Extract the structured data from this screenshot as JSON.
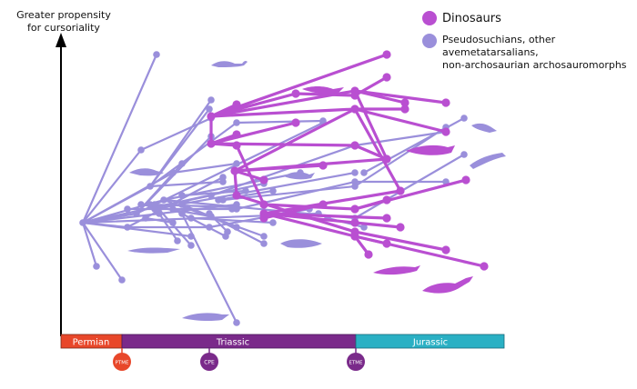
{
  "y_axis_label": [
    "Greater propensity",
    "for cursoriality"
  ],
  "legend": [
    {
      "label": "Dinosaurs",
      "color": "#b94fd1"
    },
    {
      "label": "Pseudosuchians, other avemetatarsalians,",
      "label2": "non-archosaurian archosauromorphs",
      "color": "#9a8fdb"
    }
  ],
  "periods": [
    {
      "name": "Permian",
      "color": "#e8472a"
    },
    {
      "name": "Triassic",
      "color": "#7a2a8a"
    },
    {
      "name": "Jurassic",
      "color": "#2ab0c4"
    }
  ],
  "events": [
    {
      "name": "PTME",
      "color": "#e8472a"
    },
    {
      "name": "CPE",
      "color": "#7a2a8a"
    },
    {
      "name": "ETME",
      "color": "#7a2a8a"
    }
  ]
}
